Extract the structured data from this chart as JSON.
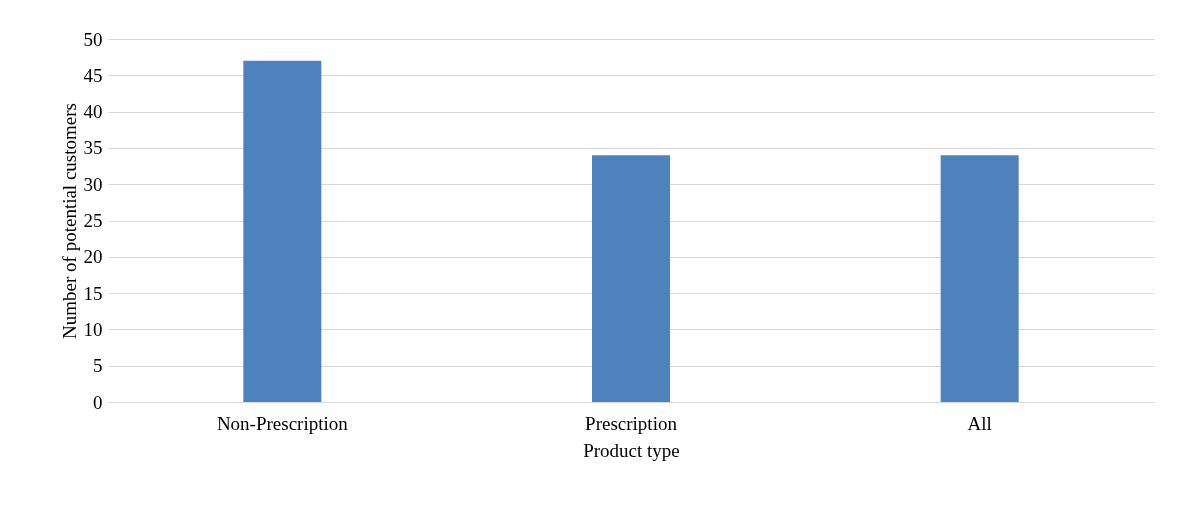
{
  "chart_data": {
    "type": "bar",
    "xlabel": "Product type",
    "ylabel": "Number of potential customers",
    "categories": [
      "Non-Prescription",
      "Prescription",
      "All"
    ],
    "values": [
      47,
      34,
      34
    ],
    "color": "#4f81bd",
    "ylim": [
      0,
      50
    ],
    "yticks": [
      0,
      5,
      10,
      15,
      20,
      25,
      30,
      35,
      40,
      45,
      50
    ],
    "grid": "y"
  }
}
